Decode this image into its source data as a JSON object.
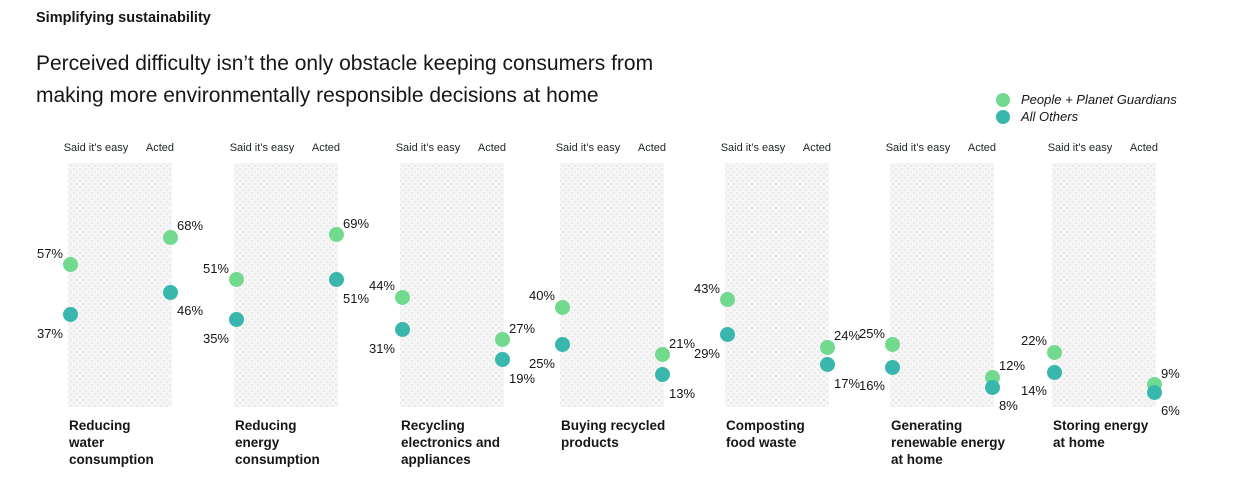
{
  "header": {
    "eyebrow": "Simplifying sustainability",
    "subtitle": "Perceived difficulty isn’t the only obstacle keeping consumers from\nmaking more environmentally responsible decisions at home"
  },
  "legend": {
    "items": [
      {
        "label": "People + Planet Guardians",
        "color": "#72da8e"
      },
      {
        "label": "All Others",
        "color": "#3ab7ad"
      }
    ]
  },
  "chart_data": {
    "type": "slope",
    "unit": "%",
    "ylim": [
      0,
      100
    ],
    "columns": [
      "Said it’s easy",
      "Acted"
    ],
    "series_names": [
      "People + Planet Guardians",
      "All Others"
    ],
    "panels": [
      {
        "category": "Reducing\nwater\nconsumption",
        "guardians": [
          57,
          68
        ],
        "others": [
          37,
          46
        ]
      },
      {
        "category": "Reducing\nenergy\nconsumption",
        "guardians": [
          51,
          69
        ],
        "others": [
          35,
          51
        ]
      },
      {
        "category": "Recycling\nelectronics and\nappliances",
        "guardians": [
          44,
          27
        ],
        "others": [
          31,
          19
        ]
      },
      {
        "category": "Buying recycled\nproducts",
        "guardians": [
          40,
          21
        ],
        "others": [
          25,
          13
        ]
      },
      {
        "category": "Composting\nfood waste",
        "guardians": [
          43,
          24
        ],
        "others": [
          29,
          17
        ]
      },
      {
        "category": "Generating\nrenewable energy\nat home",
        "guardians": [
          25,
          12
        ],
        "others": [
          16,
          8
        ]
      },
      {
        "category": "Storing energy\nat home",
        "guardians": [
          22,
          9
        ],
        "others": [
          14,
          6
        ]
      }
    ]
  },
  "colors": {
    "guardians": "#72da8e",
    "others": "#3ab7ad",
    "slope_line": "#a9a9a9",
    "column_line": "#82df9d",
    "panel_bg": "#f6f6f6",
    "text": "#161616"
  }
}
